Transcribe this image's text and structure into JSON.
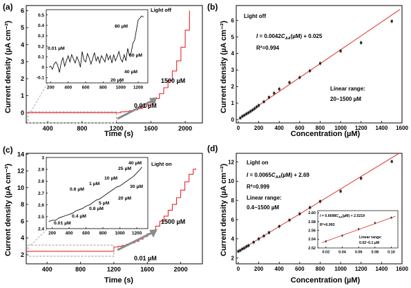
{
  "figure": {
    "panels": [
      {
        "label": "(a)",
        "xlabel": "Time (s)",
        "ylabel": "Current density (µA cm⁻²)",
        "note": "Light off",
        "arrow_upper_label": "1500 µM",
        "arrow_lower_label": "0.01 µM"
      },
      {
        "label": "(b)",
        "xlabel": "Concentration (µM)",
        "ylabel": "Current density (µA cm⁻²)",
        "note": "Light off",
        "equation": "I = 0.0042CAA(µM) + 0.025",
        "r2": "R²=0.994",
        "range_title": "Linear range:",
        "range_value": "20~1500 µM"
      },
      {
        "label": "(c)",
        "xlabel": "Time (s)",
        "ylabel": "Current density (µA cm⁻²)",
        "note": "Light on",
        "arrow_upper_label": "1500 µM",
        "arrow_lower_label": "0.01 µM"
      },
      {
        "label": "(d)",
        "xlabel": "Concentration (µM)",
        "ylabel": "Current density (µA cm⁻²)",
        "note": "Light on",
        "equation": "I = 0.0065CAA(µM) + 2.69",
        "r2": "R²=0.999",
        "range_title": "Linear range:",
        "range_value": "0.4~1500 µM"
      }
    ]
  },
  "colors": {
    "trace": "#e8262a",
    "fit": "#d9302c",
    "point": "#222222",
    "inset_line": "#111111",
    "dashed_box": "#9a9a9a",
    "arrow": "#8c8c8c"
  },
  "chart_data": [
    {
      "id": "a",
      "type": "line",
      "xlabel": "Time (s)",
      "ylabel": "Current density (µA cm⁻²)",
      "xlim": [
        150,
        2200
      ],
      "ylim": [
        -0.6,
        6.3
      ],
      "xticks": [
        400,
        800,
        1200,
        1600,
        2000
      ],
      "yticks": [
        0,
        1,
        2,
        3,
        4,
        5,
        6
      ],
      "x": [
        150,
        1200,
        1250,
        1300,
        1350,
        1400,
        1450,
        1500,
        1550,
        1600,
        1650,
        1700,
        1750,
        1800,
        1850,
        1900,
        1950,
        2000,
        2050
      ],
      "y": [
        0.0,
        0.0,
        0.05,
        0.08,
        0.12,
        0.17,
        0.24,
        0.33,
        0.45,
        0.62,
        0.84,
        1.12,
        1.47,
        1.9,
        2.45,
        3.05,
        3.85,
        4.85,
        6.0
      ],
      "inset": {
        "xlim": [
          150,
          1310
        ],
        "ylim": [
          -0.15,
          0.55
        ],
        "xticks": [
          200,
          400,
          600,
          800,
          1000,
          1200
        ],
        "yticks": [
          -0.1,
          0.0,
          0.1,
          0.2,
          0.3,
          0.4,
          0.5
        ],
        "x": [
          180,
          200,
          220,
          240,
          260,
          280,
          300,
          320,
          340,
          360,
          380,
          400,
          420,
          440,
          460,
          480,
          500,
          520,
          540,
          560,
          580,
          600,
          620,
          640,
          660,
          680,
          700,
          720,
          740,
          760,
          780,
          800,
          820,
          840,
          860,
          880,
          900,
          920,
          940,
          960,
          980,
          1000,
          1020,
          1040,
          1060,
          1080,
          1100,
          1120,
          1140,
          1160,
          1180,
          1200,
          1220,
          1240,
          1260
        ],
        "y": [
          0.0,
          0.01,
          -0.02,
          0.03,
          0.05,
          0.02,
          -0.05,
          0.04,
          0.09,
          0.01,
          0.06,
          0.11,
          0.05,
          0.12,
          0.08,
          0.04,
          0.1,
          0.06,
          0.0,
          0.15,
          0.07,
          0.05,
          0.13,
          0.09,
          0.03,
          0.08,
          0.14,
          0.06,
          0.1,
          0.04,
          0.11,
          0.08,
          0.05,
          0.13,
          0.07,
          0.11,
          0.04,
          0.12,
          0.06,
          0.1,
          0.15,
          0.08,
          0.05,
          0.12,
          0.06,
          0.18,
          0.11,
          0.14,
          0.23,
          0.26,
          0.36,
          0.45,
          0.47,
          0.49,
          0.48
        ],
        "annotations": [
          "0.01 µM",
          "20 µM",
          "40 µM",
          "60 µM",
          "80 µM"
        ]
      }
    },
    {
      "id": "b",
      "type": "scatter",
      "xlabel": "Concentration (µM)",
      "ylabel": "Current density (µA cm⁻²)",
      "xlim": [
        -20,
        1600
      ],
      "ylim": [
        -0.2,
        6.9
      ],
      "xticks": [
        0,
        200,
        400,
        600,
        800,
        1000,
        1200,
        1400,
        1600
      ],
      "yticks": [
        0,
        1,
        2,
        3,
        4,
        5,
        6
      ],
      "x": [
        20,
        40,
        60,
        80,
        100,
        120,
        140,
        160,
        180,
        200,
        250,
        300,
        350,
        400,
        500,
        600,
        700,
        800,
        1000,
        1200,
        1500
      ],
      "y": [
        0.1,
        0.2,
        0.27,
        0.35,
        0.42,
        0.5,
        0.58,
        0.67,
        0.77,
        0.86,
        1.08,
        1.35,
        1.6,
        1.85,
        2.25,
        2.55,
        2.95,
        3.4,
        4.15,
        4.65,
        5.95
      ],
      "fit": {
        "slope": 0.0042,
        "intercept": 0.025
      }
    },
    {
      "id": "c",
      "type": "line",
      "xlabel": "Time (s)",
      "ylabel": "Current density (µA cm⁻²)",
      "xlim": [
        150,
        2260
      ],
      "ylim": [
        0.9,
        14.1
      ],
      "xticks": [
        400,
        800,
        1200,
        1600,
        2000
      ],
      "yticks": [
        2,
        4,
        6,
        8,
        10,
        12,
        14
      ],
      "x": [
        150,
        1200,
        1250,
        1300,
        1350,
        1400,
        1450,
        1500,
        1550,
        1600,
        1650,
        1700,
        1750,
        1800,
        1850,
        1900,
        1950,
        2000,
        2050,
        2100,
        2150,
        2180
      ],
      "y": [
        2.4,
        2.9,
        3.0,
        3.1,
        3.25,
        3.4,
        3.6,
        3.85,
        4.15,
        4.5,
        4.9,
        5.4,
        6.0,
        6.6,
        7.3,
        8.0,
        8.8,
        9.7,
        10.7,
        11.6,
        12.2,
        12.3
      ],
      "inset": {
        "xlim": [
          130,
          1330
        ],
        "ylim": [
          2.4,
          3.0
        ],
        "xticks": [
          200,
          400,
          600,
          800,
          1000,
          1200
        ],
        "yticks": [
          2.4,
          2.5,
          2.6,
          2.7,
          2.8,
          2.9,
          3.0
        ],
        "x": [
          160,
          200,
          240,
          280,
          320,
          360,
          400,
          440,
          480,
          520,
          560,
          600,
          640,
          680,
          720,
          760,
          800,
          840,
          880,
          920,
          960,
          1000,
          1040,
          1080,
          1120,
          1160,
          1200,
          1240,
          1260
        ],
        "y": [
          2.46,
          2.47,
          2.47,
          2.49,
          2.5,
          2.51,
          2.52,
          2.53,
          2.55,
          2.56,
          2.57,
          2.59,
          2.6,
          2.62,
          2.64,
          2.65,
          2.67,
          2.69,
          2.71,
          2.73,
          2.75,
          2.76,
          2.78,
          2.8,
          2.82,
          2.84,
          2.87,
          2.9,
          2.92
        ],
        "annotations": [
          "0.01 µM",
          "0.4 µM",
          "0.6 µM",
          "1 µM",
          "0.8 µM",
          "5 µM",
          "10 µM",
          "20 µM",
          "25 µM",
          "30 µM",
          "40 µM"
        ]
      }
    },
    {
      "id": "d",
      "type": "scatter",
      "xlabel": "Concentration (µM)",
      "ylabel": "Current density (µA cm⁻²)",
      "xlim": [
        -20,
        1600
      ],
      "ylim": [
        1.4,
        12.9
      ],
      "xticks": [
        0,
        200,
        400,
        600,
        800,
        1000,
        1200,
        1400,
        1600
      ],
      "yticks": [
        2,
        4,
        6,
        8,
        10,
        12
      ],
      "x": [
        0.4,
        20,
        40,
        60,
        80,
        100,
        150,
        200,
        250,
        300,
        400,
        500,
        600,
        700,
        800,
        1000,
        1200,
        1500
      ],
      "y": [
        2.7,
        2.8,
        2.95,
        3.05,
        3.2,
        3.3,
        3.65,
        4.0,
        4.3,
        4.65,
        5.3,
        5.95,
        6.6,
        7.25,
        7.9,
        8.95,
        10.3,
        12.05
      ],
      "fit": {
        "slope": 0.0065,
        "intercept": 2.69
      },
      "inset": {
        "equation": "I = 0.6698CAA(µM) + 2.5219",
        "r2": "R²=0.993",
        "range_title": "Linear range:",
        "range_value": "0.02~0.1 µM",
        "xlim": [
          0.01,
          0.108
        ],
        "ylim": [
          2.52,
          2.605
        ],
        "xticks": [
          0.02,
          0.04,
          0.06,
          0.08,
          0.1
        ],
        "xtick_labels": [
          "0.02",
          "0.04",
          "0.06",
          "0.08",
          "0.10"
        ],
        "yticks": [
          2.52,
          2.54,
          2.56,
          2.58,
          2.6
        ],
        "ytick_labels": [
          "2.52",
          "2.54",
          "2.56",
          "2.58",
          "2.60"
        ],
        "x": [
          0.02,
          0.04,
          0.06,
          0.08,
          0.1
        ],
        "y": [
          2.535,
          2.548,
          2.563,
          2.577,
          2.589
        ],
        "fit": {
          "slope": 0.6698,
          "intercept": 2.5219
        }
      }
    }
  ]
}
